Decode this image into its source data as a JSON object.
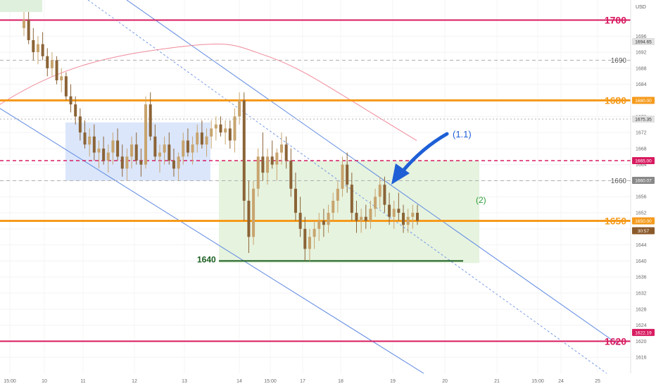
{
  "chart_data": {
    "type": "candlestick",
    "currency": "USD",
    "ylim": [
      1612,
      1705
    ],
    "y_ticks": [
      1616,
      1620,
      1624,
      1628,
      1632,
      1636,
      1640,
      1644,
      1648,
      1652,
      1656,
      1660,
      1664,
      1668,
      1672,
      1676,
      1680,
      1684,
      1688,
      1692,
      1696
    ],
    "x_ticks": [
      "15:00",
      "10",
      "11",
      "12",
      "13",
      "14",
      "15:00",
      "17",
      "18",
      "19",
      "20",
      "21",
      "15:00",
      "24",
      "25"
    ],
    "horizontal_levels": [
      {
        "name": "level-1700",
        "value": 1700,
        "label": "1700",
        "color": "#d81b60",
        "style": "solid",
        "weight": 2
      },
      {
        "name": "level-1690",
        "value": 1690,
        "label": "1690",
        "color": "#b0b0b0",
        "style": "dashed",
        "weight": 1
      },
      {
        "name": "level-1680",
        "value": 1680,
        "label": "1680",
        "color": "#f59a1b",
        "style": "solid",
        "weight": 3
      },
      {
        "name": "level-1675",
        "value": 1675.35,
        "label": "",
        "color": "#b0b0b0",
        "style": "dotted",
        "weight": 1
      },
      {
        "name": "level-1665",
        "value": 1665,
        "label": "",
        "color": "#d81b60",
        "style": "dashed",
        "weight": 1.5
      },
      {
        "name": "level-1660",
        "value": 1660,
        "label": "1660",
        "color": "#b0b0b0",
        "style": "dashed",
        "weight": 1
      },
      {
        "name": "level-1650",
        "value": 1650,
        "label": "1650",
        "color": "#f59a1b",
        "style": "solid",
        "weight": 3
      },
      {
        "name": "level-1620",
        "value": 1620,
        "label": "1620",
        "color": "#d81b60",
        "style": "solid",
        "weight": 2
      }
    ],
    "price_badges": [
      {
        "value": 1694.65,
        "text": "1694.65",
        "bg": "#e0e0e0",
        "fg": "#333333"
      },
      {
        "value": 1680.0,
        "text": "1680.00",
        "bg": "#f59a1b",
        "fg": "#ffffff"
      },
      {
        "value": 1675.35,
        "text": "1675.35",
        "bg": "#e0e0e0",
        "fg": "#333333"
      },
      {
        "value": 1665.0,
        "text": "1665.00",
        "bg": "#d81b60",
        "fg": "#ffffff"
      },
      {
        "value": 1660.07,
        "text": "1660.07",
        "bg": "#888888",
        "fg": "#ffffff"
      },
      {
        "value": 1650.0,
        "text": "1650.00",
        "bg": "#f59a1b",
        "fg": "#ffffff"
      },
      {
        "value": 1622.19,
        "text": "1622.19",
        "bg": "#d81b60",
        "fg": "#ffffff"
      }
    ],
    "countdown_badge": {
      "text": "30:57",
      "bg": "#8b5a2b",
      "fg": "#ffffff"
    },
    "support_level": {
      "value": 1640,
      "label": "1640",
      "color": "#1b5e20"
    },
    "annotations": [
      {
        "name": "annotation-1-1",
        "text": "(1.1)",
        "color": "#1e5fd6"
      },
      {
        "name": "annotation-2",
        "text": "(2)",
        "color": "#2e9e3a"
      }
    ],
    "series": [
      {
        "name": "",
        "type": "candlestick",
        "up_color": "#c8a46e",
        "down_color": "#8b6336",
        "note": "",
        "ohlc": [
          [
            1698,
            1702,
            1696,
            1700
          ],
          [
            1700,
            1702,
            1694,
            1695
          ],
          [
            1695,
            1698,
            1690,
            1692
          ],
          [
            1692,
            1696,
            1689,
            1694
          ],
          [
            1694,
            1697,
            1690,
            1691
          ],
          [
            1691,
            1693,
            1686,
            1688
          ],
          [
            1688,
            1692,
            1686,
            1690
          ],
          [
            1690,
            1691,
            1684,
            1685
          ],
          [
            1685,
            1688,
            1682,
            1686
          ],
          [
            1686,
            1687,
            1680,
            1681
          ],
          [
            1681,
            1684,
            1677,
            1679
          ],
          [
            1679,
            1681,
            1674,
            1676
          ],
          [
            1676,
            1678,
            1670,
            1672
          ],
          [
            1672,
            1675,
            1668,
            1669
          ],
          [
            1669,
            1673,
            1666,
            1671
          ],
          [
            1671,
            1674,
            1665,
            1667
          ],
          [
            1667,
            1670,
            1663,
            1668
          ],
          [
            1668,
            1671,
            1664,
            1665
          ],
          [
            1665,
            1669,
            1662,
            1667
          ],
          [
            1667,
            1672,
            1664,
            1670
          ],
          [
            1670,
            1673,
            1665,
            1666
          ],
          [
            1666,
            1669,
            1661,
            1663
          ],
          [
            1663,
            1668,
            1660,
            1666
          ],
          [
            1666,
            1671,
            1663,
            1669
          ],
          [
            1669,
            1672,
            1664,
            1665
          ],
          [
            1665,
            1668,
            1661,
            1664
          ],
          [
            1664,
            1681,
            1663,
            1679
          ],
          [
            1679,
            1682,
            1670,
            1671
          ],
          [
            1671,
            1674,
            1665,
            1666
          ],
          [
            1666,
            1669,
            1662,
            1667
          ],
          [
            1667,
            1671,
            1664,
            1669
          ],
          [
            1669,
            1672,
            1664,
            1665
          ],
          [
            1665,
            1668,
            1661,
            1663
          ],
          [
            1663,
            1667,
            1660,
            1666
          ],
          [
            1666,
            1672,
            1664,
            1670
          ],
          [
            1670,
            1673,
            1666,
            1667
          ],
          [
            1667,
            1671,
            1664,
            1669
          ],
          [
            1669,
            1674,
            1667,
            1672
          ],
          [
            1672,
            1675,
            1668,
            1669
          ],
          [
            1669,
            1673,
            1666,
            1671
          ],
          [
            1671,
            1675,
            1668,
            1673
          ],
          [
            1673,
            1676,
            1670,
            1674
          ],
          [
            1674,
            1676,
            1671,
            1672
          ],
          [
            1672,
            1675,
            1669,
            1673
          ],
          [
            1673,
            1675,
            1668,
            1670
          ],
          [
            1670,
            1678,
            1667,
            1676
          ],
          [
            1676,
            1682,
            1674,
            1680
          ],
          [
            1680,
            1682,
            1650,
            1655
          ],
          [
            1655,
            1660,
            1642,
            1646
          ],
          [
            1646,
            1660,
            1644,
            1658
          ],
          [
            1658,
            1668,
            1656,
            1666
          ],
          [
            1666,
            1672,
            1660,
            1662
          ],
          [
            1662,
            1668,
            1659,
            1666
          ],
          [
            1666,
            1670,
            1663,
            1664
          ],
          [
            1664,
            1668,
            1660,
            1667
          ],
          [
            1667,
            1672,
            1664,
            1669
          ],
          [
            1669,
            1671,
            1663,
            1665
          ],
          [
            1665,
            1668,
            1656,
            1658
          ],
          [
            1658,
            1662,
            1650,
            1652
          ],
          [
            1652,
            1656,
            1646,
            1648
          ],
          [
            1648,
            1651,
            1640,
            1643
          ],
          [
            1643,
            1648,
            1640,
            1646
          ],
          [
            1646,
            1650,
            1643,
            1648
          ],
          [
            1648,
            1652,
            1645,
            1650
          ],
          [
            1650,
            1653,
            1646,
            1649
          ],
          [
            1649,
            1654,
            1647,
            1652
          ],
          [
            1652,
            1657,
            1650,
            1655
          ],
          [
            1655,
            1660,
            1652,
            1658
          ],
          [
            1658,
            1666,
            1656,
            1664
          ],
          [
            1664,
            1667,
            1657,
            1659
          ],
          [
            1659,
            1662,
            1650,
            1652
          ],
          [
            1652,
            1655,
            1647,
            1650
          ],
          [
            1650,
            1653,
            1647,
            1651
          ],
          [
            1651,
            1654,
            1648,
            1650
          ],
          [
            1650,
            1655,
            1648,
            1653
          ],
          [
            1653,
            1658,
            1651,
            1656
          ],
          [
            1656,
            1661,
            1653,
            1659
          ],
          [
            1659,
            1661,
            1652,
            1654
          ],
          [
            1654,
            1657,
            1649,
            1651
          ],
          [
            1651,
            1655,
            1648,
            1653
          ],
          [
            1653,
            1657,
            1650,
            1652
          ],
          [
            1652,
            1654,
            1647,
            1649
          ],
          [
            1649,
            1653,
            1647,
            1651
          ],
          [
            1651,
            1654,
            1648,
            1652
          ],
          [
            1652,
            1654,
            1649,
            1650
          ]
        ]
      }
    ]
  }
}
